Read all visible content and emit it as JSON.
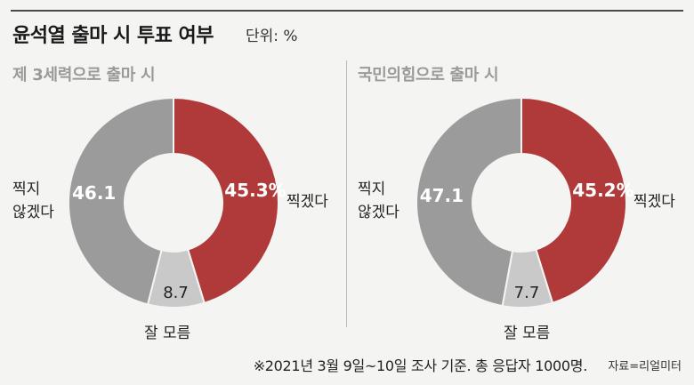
{
  "title": "윤석열 출마 시 투표 여부",
  "unit": "단위: %",
  "footnote": "※2021년 3월 9일~10일 조사 기준. 총 응답자 1000명.",
  "credit": "자료=리얼미터",
  "colors": {
    "yes": "#b03a3a",
    "no": "#9b9b9b",
    "unsure": "#c9c9c9",
    "bg": "#f4f4f2"
  },
  "chart_data": [
    {
      "type": "pie",
      "title": "제 3세력으로 출마 시",
      "slices": [
        {
          "label": "찍겠다",
          "value": 45.3,
          "display": "45.3%"
        },
        {
          "label": "잘 모름",
          "value": 8.7,
          "display": "8.7"
        },
        {
          "label": "찍지 않겠다",
          "value": 46.1,
          "display": "46.1"
        }
      ]
    },
    {
      "type": "pie",
      "title": "국민의힘으로 출마 시",
      "slices": [
        {
          "label": "찍겠다",
          "value": 45.2,
          "display": "45.2%"
        },
        {
          "label": "잘 모름",
          "value": 7.7,
          "display": "7.7"
        },
        {
          "label": "찍지 않겠다",
          "value": 47.1,
          "display": "47.1"
        }
      ]
    }
  ],
  "labels": {
    "yes": "찍겠다",
    "no_line1": "찍지",
    "no_line2": "않겠다",
    "unsure": "잘 모름"
  }
}
